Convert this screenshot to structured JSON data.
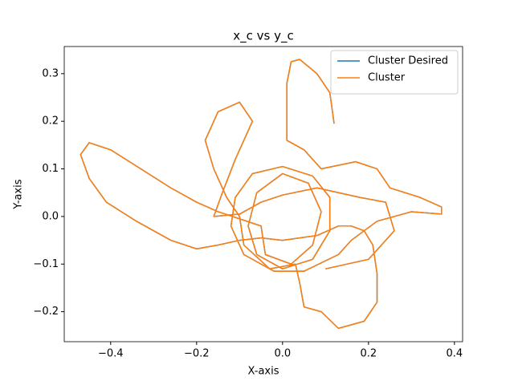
{
  "chart_data": {
    "type": "line",
    "title": "x_c vs y_c",
    "x_label": "X-axis",
    "y_label": "Y-axis",
    "x": [
      0.12,
      0.11,
      0.08,
      0.04,
      0.02,
      0.01,
      0.01,
      0.05,
      0.09,
      0.17,
      0.22,
      0.25,
      0.32,
      0.37,
      0.37,
      0.3,
      0.22,
      0.16,
      0.13,
      0.05,
      -0.02,
      -0.09,
      -0.12,
      -0.11,
      -0.07,
      0.0,
      0.07,
      0.11,
      0.11,
      0.07,
      0.0,
      -0.06,
      -0.08,
      -0.06,
      0.0,
      0.06,
      0.09,
      0.07,
      0.02,
      -0.04,
      -0.05,
      -0.15,
      -0.2,
      -0.26,
      -0.33,
      -0.4,
      -0.45,
      -0.47,
      -0.45,
      -0.41,
      -0.34,
      -0.26,
      -0.2,
      -0.15,
      -0.1,
      -0.05,
      0.0,
      0.08,
      0.13,
      0.16,
      0.19,
      0.21,
      0.22,
      0.22,
      0.19,
      0.13,
      0.09,
      0.05,
      0.04,
      0.03,
      -0.03,
      -0.09,
      -0.1,
      -0.13,
      -0.16,
      -0.18,
      -0.15,
      -0.1,
      -0.07,
      -0.11,
      -0.14,
      -0.16,
      -0.1,
      -0.05,
      0.0,
      0.08,
      0.18,
      0.24,
      0.26,
      0.2,
      0.1
    ],
    "series": [
      {
        "name": "Cluster Desired",
        "color": "#1f77b4",
        "values": [
          0.195,
          0.26,
          0.3,
          0.33,
          0.325,
          0.28,
          0.16,
          0.14,
          0.1,
          0.115,
          0.1,
          0.06,
          0.04,
          0.02,
          0.005,
          0.01,
          -0.01,
          -0.05,
          -0.08,
          -0.115,
          -0.115,
          -0.08,
          -0.02,
          0.04,
          0.09,
          0.105,
          0.085,
          0.04,
          -0.03,
          -0.09,
          -0.11,
          -0.08,
          -0.02,
          0.05,
          0.09,
          0.07,
          0.01,
          -0.06,
          -0.1,
          -0.08,
          -0.02,
          0.01,
          0.03,
          0.06,
          0.1,
          0.14,
          0.155,
          0.13,
          0.08,
          0.03,
          -0.01,
          -0.05,
          -0.068,
          -0.06,
          -0.05,
          -0.045,
          -0.05,
          -0.04,
          -0.02,
          -0.02,
          -0.03,
          -0.06,
          -0.12,
          -0.18,
          -0.22,
          -0.235,
          -0.2,
          -0.19,
          -0.14,
          -0.1,
          -0.11,
          -0.06,
          0.0,
          0.04,
          0.1,
          0.16,
          0.22,
          0.24,
          0.2,
          0.12,
          0.05,
          0.0,
          0.005,
          0.03,
          0.045,
          0.06,
          0.04,
          0.03,
          -0.03,
          -0.09,
          -0.11
        ]
      },
      {
        "name": "Cluster",
        "color": "#ff7f0e",
        "values": [
          0.195,
          0.26,
          0.3,
          0.33,
          0.325,
          0.28,
          0.16,
          0.14,
          0.1,
          0.115,
          0.1,
          0.06,
          0.04,
          0.02,
          0.005,
          0.01,
          -0.01,
          -0.05,
          -0.08,
          -0.115,
          -0.115,
          -0.08,
          -0.02,
          0.04,
          0.09,
          0.105,
          0.085,
          0.04,
          -0.03,
          -0.09,
          -0.11,
          -0.08,
          -0.02,
          0.05,
          0.09,
          0.07,
          0.01,
          -0.06,
          -0.1,
          -0.08,
          -0.02,
          0.01,
          0.03,
          0.06,
          0.1,
          0.14,
          0.155,
          0.13,
          0.08,
          0.03,
          -0.01,
          -0.05,
          -0.068,
          -0.06,
          -0.05,
          -0.045,
          -0.05,
          -0.04,
          -0.02,
          -0.02,
          -0.03,
          -0.06,
          -0.12,
          -0.18,
          -0.22,
          -0.235,
          -0.2,
          -0.19,
          -0.14,
          -0.1,
          -0.11,
          -0.06,
          0.0,
          0.04,
          0.1,
          0.16,
          0.22,
          0.24,
          0.2,
          0.12,
          0.05,
          0.0,
          0.005,
          0.03,
          0.045,
          0.06,
          0.04,
          0.03,
          -0.03,
          -0.09,
          -0.11
        ]
      }
    ],
    "xlim": [
      -0.508,
      0.419
    ],
    "ylim": [
      -0.263,
      0.357
    ],
    "xticks": [
      {
        "value": -0.4,
        "label": "−0.4"
      },
      {
        "value": -0.2,
        "label": "−0.2"
      },
      {
        "value": 0,
        "label": "0.0"
      },
      0.2,
      0.4
    ],
    "yticks": [
      {
        "value": -0.2,
        "label": "−0.2"
      },
      {
        "value": -0.1,
        "label": "−0.1"
      },
      {
        "value": 0,
        "label": "0.0"
      },
      0.1,
      0.2,
      0.3
    ],
    "legend": "upper right",
    "grid": false
  }
}
